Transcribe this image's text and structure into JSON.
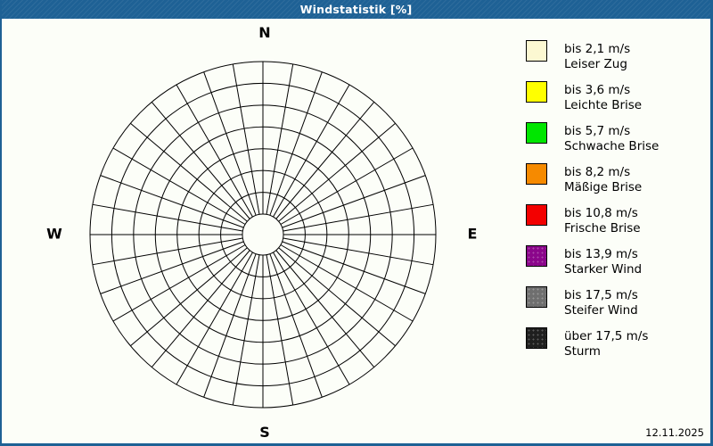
{
  "window": {
    "title": "Windstatistik [%]",
    "date": "12.11.2025",
    "frame_color": "#1e6195",
    "background_color": "#fcfef8"
  },
  "compass": {
    "north": "N",
    "east": "E",
    "south": "S",
    "west": "W"
  },
  "legend": {
    "position": "right",
    "items": [
      {
        "color": "#fcf8d2",
        "speed": "bis 2,1 m/s",
        "name": "Leiser Zug"
      },
      {
        "color": "#ffff00",
        "speed": "bis 3,6 m/s",
        "name": "Leichte Brise"
      },
      {
        "color": "#00e600",
        "speed": "bis 5,7 m/s",
        "name": "Schwache Brise"
      },
      {
        "color": "#f68a00",
        "speed": "bis 8,2 m/s",
        "name": "Mäßige Brise"
      },
      {
        "color": "#f30000",
        "speed": "bis 10,8 m/s",
        "name": "Frische Brise"
      },
      {
        "color": "#8b068b",
        "speed": "bis 13,9 m/s",
        "name": "Starker Wind"
      },
      {
        "color": "#6f6f6f",
        "speed": "bis 17,5 m/s",
        "name": "Steifer Wind"
      },
      {
        "color": "#1f1f1f",
        "speed": "über 17,5 m/s",
        "name": "Sturm"
      }
    ]
  },
  "chart_data": {
    "type": "windrose",
    "title": "Windstatistik [%]",
    "unit": "%",
    "compass_labels": [
      "N",
      "E",
      "S",
      "W"
    ],
    "direction_sectors": 36,
    "sector_width_deg": 10,
    "rings": 8,
    "hub_radius": 23,
    "outer_radius": 194,
    "grid": true,
    "grid_color": "#000000",
    "series": [],
    "note": "Empty polar grid – no wind frequency values are plotted; only the 36-sector / 8-ring grid is shown.",
    "legend_position": "right",
    "legend_classes": [
      {
        "color": "#fcf8d2",
        "speed": "bis 2,1 m/s",
        "name": "Leiser Zug"
      },
      {
        "color": "#ffff00",
        "speed": "bis 3,6 m/s",
        "name": "Leichte Brise"
      },
      {
        "color": "#00e600",
        "speed": "bis 5,7 m/s",
        "name": "Schwache Brise"
      },
      {
        "color": "#f68a00",
        "speed": "bis 8,2 m/s",
        "name": "Mäßige Brise"
      },
      {
        "color": "#f30000",
        "speed": "bis 10,8 m/s",
        "name": "Frische Brise"
      },
      {
        "color": "#8b068b",
        "speed": "bis 13,9 m/s",
        "name": "Starker Wind"
      },
      {
        "color": "#6f6f6f",
        "speed": "bis 17,5 m/s",
        "name": "Steifer Wind"
      },
      {
        "color": "#1f1f1f",
        "speed": "über 17,5 m/s",
        "name": "Sturm"
      }
    ]
  }
}
